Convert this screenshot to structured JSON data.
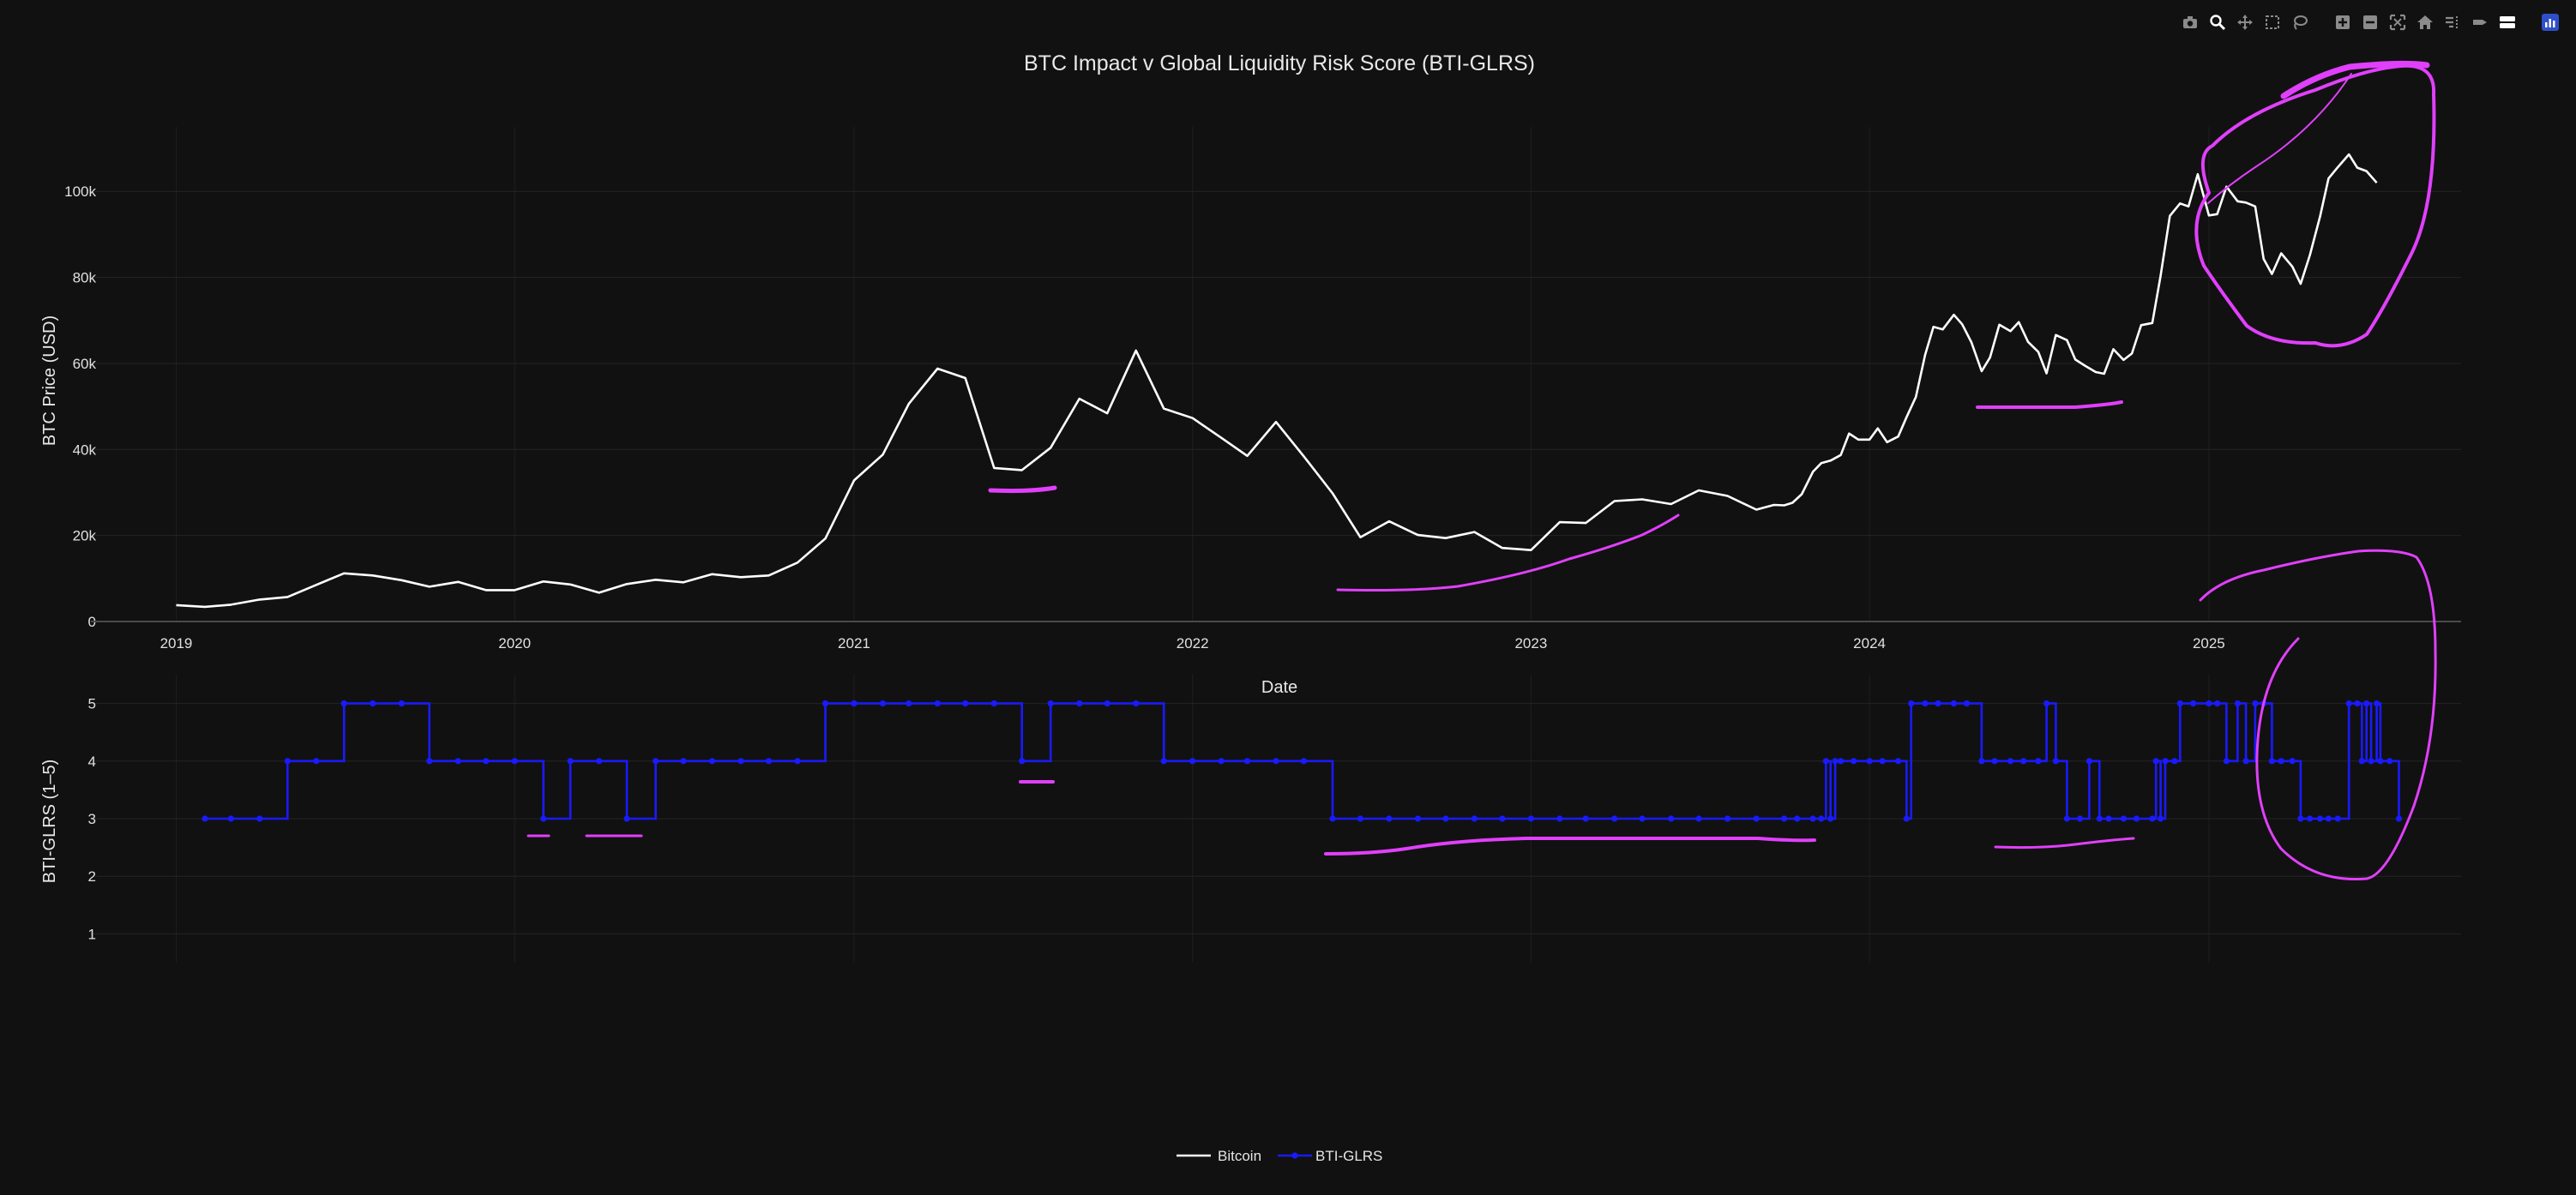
{
  "chart_data": {
    "type": "line",
    "title": "BTC Impact v Global Liquidity Risk Score (BTI-GLRS)",
    "xlabel": "Date",
    "ylabel_top": "BTC Price (USD)",
    "ylabel_bottom": "BTI-GLRS (1–5)",
    "x_ticks": [
      "2019",
      "2020",
      "2021",
      "2022",
      "2023",
      "2024",
      "2025"
    ],
    "y_ticks_top": [
      "0",
      "20k",
      "40k",
      "60k",
      "80k",
      "100k"
    ],
    "y_ticks_bottom": [
      "1",
      "2",
      "3",
      "4",
      "5"
    ],
    "ylim_top": [
      0,
      113000
    ],
    "ylim_bottom": [
      0.5,
      5.5
    ],
    "xlim": [
      "2018-10-01",
      "2025-09-30"
    ],
    "grid": true,
    "legend_placement": "bottom-center",
    "series": [
      {
        "name": "Bitcoin",
        "color": "#ffffff",
        "points": [
          [
            "2019-01-01",
            3800
          ],
          [
            "2019-02-01",
            3400
          ],
          [
            "2019-03-01",
            3900
          ],
          [
            "2019-04-01",
            5100
          ],
          [
            "2019-05-01",
            5700
          ],
          [
            "2019-06-01",
            8500
          ],
          [
            "2019-07-01",
            11200
          ],
          [
            "2019-08-01",
            10700
          ],
          [
            "2019-09-01",
            9600
          ],
          [
            "2019-10-01",
            8100
          ],
          [
            "2019-11-01",
            9200
          ],
          [
            "2019-12-01",
            7300
          ],
          [
            "2020-01-01",
            7300
          ],
          [
            "2020-02-01",
            9300
          ],
          [
            "2020-03-01",
            8600
          ],
          [
            "2020-04-01",
            6700
          ],
          [
            "2020-05-01",
            8700
          ],
          [
            "2020-06-01",
            9700
          ],
          [
            "2020-07-01",
            9100
          ],
          [
            "2020-08-01",
            11000
          ],
          [
            "2020-09-01",
            10300
          ],
          [
            "2020-10-01",
            10700
          ],
          [
            "2020-11-01",
            13700
          ],
          [
            "2020-12-01",
            19300
          ],
          [
            "2021-01-01",
            32800
          ],
          [
            "2021-02-01",
            38800
          ],
          [
            "2021-03-01",
            50600
          ],
          [
            "2021-04-01",
            58800
          ],
          [
            "2021-05-01",
            56600
          ],
          [
            "2021-06-01",
            35700
          ],
          [
            "2021-07-01",
            35200
          ],
          [
            "2021-08-01",
            40400
          ],
          [
            "2021-09-01",
            51800
          ],
          [
            "2021-10-01",
            48400
          ],
          [
            "2021-11-01",
            63000
          ],
          [
            "2021-12-01",
            49500
          ],
          [
            "2022-01-01",
            47300
          ],
          [
            "2022-02-01",
            42700
          ],
          [
            "2022-03-01",
            38500
          ],
          [
            "2022-04-01",
            46400
          ],
          [
            "2022-05-01",
            38400
          ],
          [
            "2022-06-01",
            29800
          ],
          [
            "2022-07-01",
            19600
          ],
          [
            "2022-08-01",
            23300
          ],
          [
            "2022-09-01",
            20100
          ],
          [
            "2022-10-01",
            19400
          ],
          [
            "2022-11-01",
            20800
          ],
          [
            "2022-12-01",
            17100
          ],
          [
            "2023-01-01",
            16600
          ],
          [
            "2023-02-01",
            23100
          ],
          [
            "2023-03-01",
            22900
          ],
          [
            "2023-04-01",
            28000
          ],
          [
            "2023-05-01",
            28400
          ],
          [
            "2023-06-01",
            27300
          ],
          [
            "2023-07-01",
            30500
          ],
          [
            "2023-08-01",
            29200
          ],
          [
            "2023-09-01",
            26000
          ],
          [
            "2023-09-20",
            27100
          ],
          [
            "2023-10-01",
            27000
          ],
          [
            "2023-10-10",
            27600
          ],
          [
            "2023-10-20",
            29600
          ],
          [
            "2023-11-01",
            34800
          ],
          [
            "2023-11-10",
            36800
          ],
          [
            "2023-11-20",
            37400
          ],
          [
            "2023-12-01",
            38700
          ],
          [
            "2023-12-10",
            43700
          ],
          [
            "2023-12-20",
            42300
          ],
          [
            "2024-01-01",
            42300
          ],
          [
            "2024-01-10",
            44900
          ],
          [
            "2024-01-20",
            41700
          ],
          [
            "2024-02-01",
            43000
          ],
          [
            "2024-02-10",
            47500
          ],
          [
            "2024-02-20",
            52200
          ],
          [
            "2024-03-01",
            62000
          ],
          [
            "2024-03-10",
            68500
          ],
          [
            "2024-03-20",
            67900
          ],
          [
            "2024-04-01",
            71300
          ],
          [
            "2024-04-10",
            69100
          ],
          [
            "2024-04-20",
            64900
          ],
          [
            "2024-05-01",
            58200
          ],
          [
            "2024-05-10",
            61400
          ],
          [
            "2024-05-20",
            69000
          ],
          [
            "2024-06-01",
            67500
          ],
          [
            "2024-06-10",
            69600
          ],
          [
            "2024-06-20",
            65000
          ],
          [
            "2024-07-01",
            62700
          ],
          [
            "2024-07-10",
            57700
          ],
          [
            "2024-07-20",
            66600
          ],
          [
            "2024-08-01",
            65400
          ],
          [
            "2024-08-10",
            60900
          ],
          [
            "2024-08-20",
            59500
          ],
          [
            "2024-09-01",
            58000
          ],
          [
            "2024-09-10",
            57600
          ],
          [
            "2024-09-20",
            63300
          ],
          [
            "2024-10-01",
            60800
          ],
          [
            "2024-10-10",
            62300
          ],
          [
            "2024-10-20",
            68900
          ],
          [
            "2024-11-01",
            69400
          ],
          [
            "2024-11-10",
            80400
          ],
          [
            "2024-11-20",
            94300
          ],
          [
            "2024-12-01",
            97200
          ],
          [
            "2024-12-10",
            96500
          ],
          [
            "2024-12-20",
            104000
          ],
          [
            "2025-01-01",
            94400
          ],
          [
            "2025-01-10",
            94700
          ],
          [
            "2025-01-20",
            101100
          ],
          [
            "2025-02-01",
            97700
          ],
          [
            "2025-02-10",
            97400
          ],
          [
            "2025-02-20",
            96500
          ],
          [
            "2025-03-01",
            84300
          ],
          [
            "2025-03-10",
            80800
          ],
          [
            "2025-03-20",
            85600
          ],
          [
            "2025-04-01",
            82500
          ],
          [
            "2025-04-10",
            78500
          ],
          [
            "2025-04-20",
            85200
          ],
          [
            "2025-05-01",
            94200
          ],
          [
            "2025-05-10",
            103000
          ],
          [
            "2025-05-20",
            105600
          ],
          [
            "2025-06-01",
            108600
          ],
          [
            "2025-06-10",
            105500
          ],
          [
            "2025-06-20",
            104700
          ],
          [
            "2025-07-01",
            102000
          ]
        ]
      },
      {
        "name": "BTI-GLRS",
        "color": "#1a1aff",
        "shape": "hv",
        "points": [
          [
            "2019-02-01",
            3
          ],
          [
            "2019-03-01",
            3
          ],
          [
            "2019-04-01",
            3
          ],
          [
            "2019-05-01",
            4
          ],
          [
            "2019-06-01",
            4
          ],
          [
            "2019-07-01",
            5
          ],
          [
            "2019-08-01",
            5
          ],
          [
            "2019-09-01",
            5
          ],
          [
            "2019-10-01",
            4
          ],
          [
            "2019-11-01",
            4
          ],
          [
            "2019-12-01",
            4
          ],
          [
            "2020-01-01",
            4
          ],
          [
            "2020-02-01",
            3
          ],
          [
            "2020-03-01",
            4
          ],
          [
            "2020-04-01",
            4
          ],
          [
            "2020-05-01",
            3
          ],
          [
            "2020-06-01",
            4
          ],
          [
            "2020-07-01",
            4
          ],
          [
            "2020-08-01",
            4
          ],
          [
            "2020-09-01",
            4
          ],
          [
            "2020-10-01",
            4
          ],
          [
            "2020-11-01",
            4
          ],
          [
            "2020-12-01",
            5
          ],
          [
            "2021-01-01",
            5
          ],
          [
            "2021-02-01",
            5
          ],
          [
            "2021-03-01",
            5
          ],
          [
            "2021-04-01",
            5
          ],
          [
            "2021-05-01",
            5
          ],
          [
            "2021-06-01",
            5
          ],
          [
            "2021-07-01",
            4
          ],
          [
            "2021-08-01",
            5
          ],
          [
            "2021-09-01",
            5
          ],
          [
            "2021-10-01",
            5
          ],
          [
            "2021-11-01",
            5
          ],
          [
            "2021-12-01",
            4
          ],
          [
            "2022-01-01",
            4
          ],
          [
            "2022-02-01",
            4
          ],
          [
            "2022-03-01",
            4
          ],
          [
            "2022-04-01",
            4
          ],
          [
            "2022-05-01",
            4
          ],
          [
            "2022-06-01",
            3
          ],
          [
            "2022-07-01",
            3
          ],
          [
            "2022-08-01",
            3
          ],
          [
            "2022-09-01",
            3
          ],
          [
            "2022-10-01",
            3
          ],
          [
            "2022-11-01",
            3
          ],
          [
            "2022-12-01",
            3
          ],
          [
            "2023-01-01",
            3
          ],
          [
            "2023-02-01",
            3
          ],
          [
            "2023-03-01",
            3
          ],
          [
            "2023-04-01",
            3
          ],
          [
            "2023-05-01",
            3
          ],
          [
            "2023-06-01",
            3
          ],
          [
            "2023-07-01",
            3
          ],
          [
            "2023-08-01",
            3
          ],
          [
            "2023-09-01",
            3
          ],
          [
            "2023-10-01",
            3
          ],
          [
            "2023-10-15",
            3
          ],
          [
            "2023-11-01",
            3
          ],
          [
            "2023-11-10",
            3
          ],
          [
            "2023-11-15",
            4
          ],
          [
            "2023-11-20",
            3
          ],
          [
            "2023-11-25",
            4
          ],
          [
            "2023-12-01",
            4
          ],
          [
            "2023-12-15",
            4
          ],
          [
            "2024-01-01",
            4
          ],
          [
            "2024-01-15",
            4
          ],
          [
            "2024-02-01",
            4
          ],
          [
            "2024-02-10",
            3
          ],
          [
            "2024-02-15",
            5
          ],
          [
            "2024-03-01",
            5
          ],
          [
            "2024-03-15",
            5
          ],
          [
            "2024-04-01",
            5
          ],
          [
            "2024-04-15",
            5
          ],
          [
            "2024-05-01",
            4
          ],
          [
            "2024-05-15",
            4
          ],
          [
            "2024-06-01",
            4
          ],
          [
            "2024-06-15",
            4
          ],
          [
            "2024-07-01",
            4
          ],
          [
            "2024-07-10",
            5
          ],
          [
            "2024-07-20",
            4
          ],
          [
            "2024-08-01",
            3
          ],
          [
            "2024-08-15",
            3
          ],
          [
            "2024-08-25",
            4
          ],
          [
            "2024-09-05",
            3
          ],
          [
            "2024-09-15",
            3
          ],
          [
            "2024-10-01",
            3
          ],
          [
            "2024-10-15",
            3
          ],
          [
            "2024-11-01",
            3
          ],
          [
            "2024-11-05",
            4
          ],
          [
            "2024-11-10",
            3
          ],
          [
            "2024-11-15",
            4
          ],
          [
            "2024-11-25",
            4
          ],
          [
            "2024-12-01",
            5
          ],
          [
            "2024-12-15",
            5
          ],
          [
            "2025-01-01",
            5
          ],
          [
            "2025-01-10",
            5
          ],
          [
            "2025-01-20",
            4
          ],
          [
            "2025-02-01",
            5
          ],
          [
            "2025-02-10",
            4
          ],
          [
            "2025-02-20",
            5
          ],
          [
            "2025-03-01",
            5
          ],
          [
            "2025-03-10",
            4
          ],
          [
            "2025-03-20",
            4
          ],
          [
            "2025-04-01",
            4
          ],
          [
            "2025-04-10",
            3
          ],
          [
            "2025-04-20",
            3
          ],
          [
            "2025-05-01",
            3
          ],
          [
            "2025-05-10",
            3
          ],
          [
            "2025-05-20",
            3
          ],
          [
            "2025-06-01",
            5
          ],
          [
            "2025-06-10",
            5
          ],
          [
            "2025-06-15",
            4
          ],
          [
            "2025-06-20",
            5
          ],
          [
            "2025-06-25",
            4
          ],
          [
            "2025-07-01",
            5
          ],
          [
            "2025-07-05",
            4
          ],
          [
            "2025-07-15",
            4
          ],
          [
            "2025-07-25",
            3
          ]
        ]
      }
    ]
  },
  "toolbar": {
    "icons": [
      "camera-icon",
      "zoom-icon",
      "pan-icon",
      "box-select-icon",
      "lasso-select-icon",
      "zoom-in-icon",
      "zoom-out-icon",
      "autoscale-icon",
      "reset-axes-icon",
      "spike-lines-icon",
      "hover-closest-icon",
      "hover-compare-icon",
      "plotly-logo-icon"
    ]
  },
  "annotations": {
    "color": "#e040fb"
  }
}
